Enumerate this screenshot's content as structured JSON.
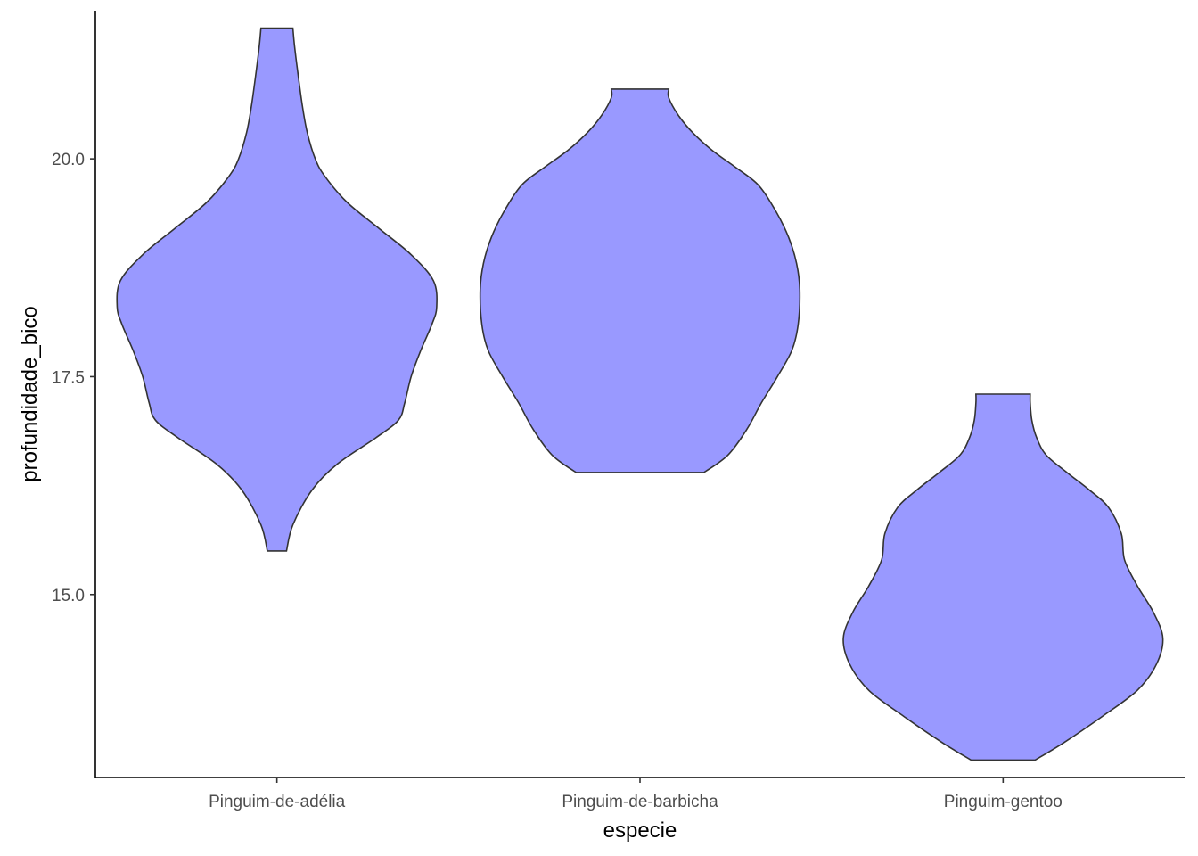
{
  "chart_data": {
    "type": "violin",
    "xlabel": "especie",
    "ylabel": "profundidade_bico",
    "categories": [
      "Pinguim-de-adélia",
      "Pinguim-de-barbicha",
      "Pinguim-gentoo"
    ],
    "ylim": [
      12.9,
      21.7
    ],
    "yticks": [
      15.0,
      17.5,
      20.0
    ],
    "ytick_labels": [
      "15.0",
      "17.5",
      "20.0"
    ],
    "fill_color": "#9999ff",
    "outline_color": "#333333",
    "grid": false,
    "legend": "none",
    "series": [
      {
        "category": "Pinguim-de-adélia",
        "min": 15.5,
        "max": 21.5,
        "density_profile": [
          [
            15.5,
            0.06
          ],
          [
            15.8,
            0.1
          ],
          [
            16.2,
            0.22
          ],
          [
            16.5,
            0.38
          ],
          [
            16.8,
            0.62
          ],
          [
            17.0,
            0.76
          ],
          [
            17.2,
            0.8
          ],
          [
            17.5,
            0.84
          ],
          [
            17.8,
            0.9
          ],
          [
            18.1,
            0.97
          ],
          [
            18.3,
            1.0
          ],
          [
            18.6,
            0.98
          ],
          [
            18.9,
            0.84
          ],
          [
            19.2,
            0.64
          ],
          [
            19.5,
            0.44
          ],
          [
            19.8,
            0.3
          ],
          [
            20.0,
            0.24
          ],
          [
            20.3,
            0.19
          ],
          [
            20.6,
            0.16
          ],
          [
            21.0,
            0.13
          ],
          [
            21.3,
            0.11
          ],
          [
            21.5,
            0.1
          ]
        ]
      },
      {
        "category": "Pinguim-de-barbicha",
        "min": 16.4,
        "max": 20.8,
        "density_profile": [
          [
            16.4,
            0.4
          ],
          [
            16.6,
            0.55
          ],
          [
            16.9,
            0.67
          ],
          [
            17.2,
            0.76
          ],
          [
            17.5,
            0.86
          ],
          [
            17.8,
            0.95
          ],
          [
            18.1,
            0.99
          ],
          [
            18.5,
            1.0
          ],
          [
            18.8,
            0.98
          ],
          [
            19.1,
            0.93
          ],
          [
            19.4,
            0.85
          ],
          [
            19.7,
            0.74
          ],
          [
            19.9,
            0.6
          ],
          [
            20.1,
            0.45
          ],
          [
            20.3,
            0.33
          ],
          [
            20.5,
            0.24
          ],
          [
            20.7,
            0.18
          ],
          [
            20.8,
            0.18
          ]
        ]
      },
      {
        "category": "Pinguim-gentoo",
        "min": 13.1,
        "max": 17.3,
        "density_profile": [
          [
            13.1,
            0.2
          ],
          [
            13.3,
            0.38
          ],
          [
            13.6,
            0.62
          ],
          [
            13.9,
            0.84
          ],
          [
            14.2,
            0.96
          ],
          [
            14.5,
            1.0
          ],
          [
            14.8,
            0.94
          ],
          [
            15.1,
            0.84
          ],
          [
            15.4,
            0.76
          ],
          [
            15.7,
            0.74
          ],
          [
            16.0,
            0.66
          ],
          [
            16.2,
            0.54
          ],
          [
            16.4,
            0.4
          ],
          [
            16.6,
            0.27
          ],
          [
            16.8,
            0.21
          ],
          [
            17.0,
            0.18
          ],
          [
            17.2,
            0.17
          ],
          [
            17.3,
            0.17
          ]
        ]
      }
    ]
  }
}
